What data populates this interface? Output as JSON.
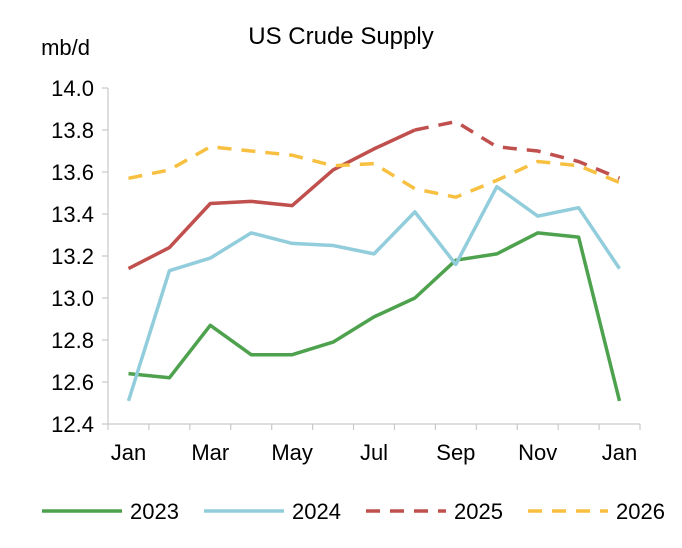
{
  "chart_data": {
    "type": "line",
    "title": "US Crude Supply",
    "ylabel": "mb/d",
    "xlabel": "",
    "ylim": [
      12.4,
      14.0
    ],
    "y_ticks": [
      "12.4",
      "12.6",
      "12.8",
      "13.0",
      "13.2",
      "13.4",
      "13.6",
      "13.8",
      "14.0"
    ],
    "y_tick_values": [
      12.4,
      12.6,
      12.8,
      13.0,
      13.2,
      13.4,
      13.6,
      13.8,
      14.0
    ],
    "x_tick_labels": [
      "Jan",
      "Mar",
      "May",
      "Jul",
      "Sep",
      "Nov",
      "Jan"
    ],
    "x_tick_positions": [
      1,
      3,
      5,
      7,
      9,
      11,
      13
    ],
    "grid": false,
    "legend_position": "bottom",
    "series": [
      {
        "name": "2023",
        "color": "#4ea24e",
        "dash": "solid",
        "x": [
          1,
          2,
          3,
          4,
          5,
          6,
          7,
          8,
          9,
          10,
          11,
          12,
          13
        ],
        "values": [
          12.64,
          12.62,
          12.87,
          12.73,
          12.73,
          12.79,
          12.91,
          13.0,
          13.18,
          13.21,
          13.31,
          13.29,
          12.51
        ]
      },
      {
        "name": "2024",
        "color": "#92cddc",
        "dash": "solid",
        "x": [
          1,
          2,
          3,
          4,
          5,
          6,
          7,
          8,
          9,
          10,
          11,
          12,
          13
        ],
        "values": [
          12.51,
          13.13,
          13.19,
          13.31,
          13.26,
          13.25,
          13.21,
          13.41,
          13.16,
          13.53,
          13.39,
          13.43,
          13.14
        ]
      },
      {
        "name": "2025",
        "color": "#c0504d",
        "dash": "solid-then-dashed",
        "x": [
          1,
          2,
          3,
          4,
          5,
          6,
          7,
          8,
          9,
          10,
          11,
          12,
          13
        ],
        "values": [
          13.14,
          13.24,
          13.45,
          13.46,
          13.44,
          13.61,
          13.71,
          13.8,
          13.84,
          13.72,
          13.7,
          13.65,
          13.57
        ],
        "solid_until_x": 8
      },
      {
        "name": "2026",
        "color": "#f7c040",
        "dash": "dashed",
        "x": [
          1,
          2,
          3,
          4,
          5,
          6,
          7,
          8,
          9,
          10,
          11,
          12,
          13
        ],
        "values": [
          13.57,
          13.61,
          13.72,
          13.7,
          13.68,
          13.63,
          13.64,
          13.52,
          13.48,
          13.56,
          13.65,
          13.63,
          13.55
        ]
      }
    ]
  }
}
